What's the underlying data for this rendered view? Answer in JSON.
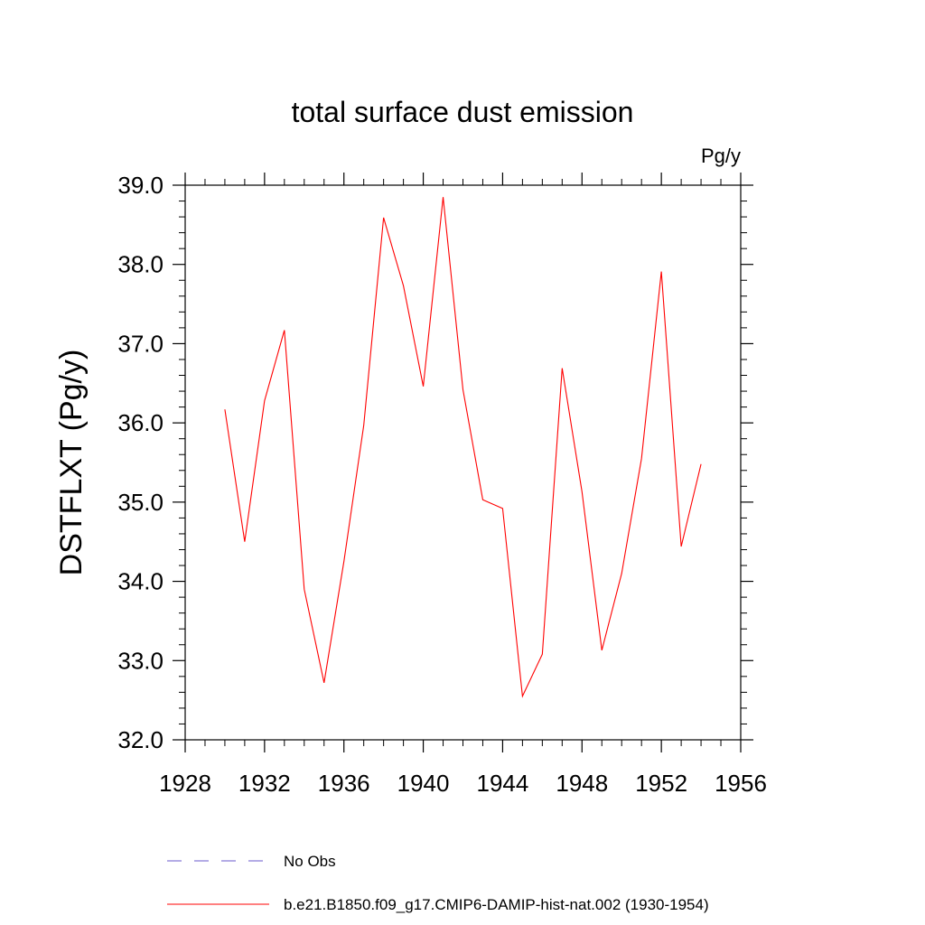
{
  "chart_data": {
    "type": "line",
    "title": "total surface dust emission",
    "units_label": "Pg/y",
    "ylabel": "DSTFLXT  (Pg/y)",
    "xlabel": "",
    "xlim": [
      1928,
      1956
    ],
    "ylim": [
      32.0,
      39.0
    ],
    "x_ticks": [
      1928,
      1932,
      1936,
      1940,
      1944,
      1948,
      1952,
      1956
    ],
    "y_ticks": [
      "32.0",
      "33.0",
      "34.0",
      "35.0",
      "36.0",
      "37.0",
      "38.0",
      "39.0"
    ],
    "legend_position": "bottom",
    "series": [
      {
        "name": "No Obs",
        "color": "#6a5acd",
        "style": "dashed",
        "x": [],
        "values": []
      },
      {
        "name": "b.e21.B1850.f09_g17.CMIP6-DAMIP-hist-nat.002 (1930-1954)",
        "color": "#ff0000",
        "style": "solid",
        "x": [
          1930,
          1931,
          1932,
          1933,
          1934,
          1935,
          1936,
          1937,
          1938,
          1939,
          1940,
          1941,
          1942,
          1943,
          1944,
          1945,
          1946,
          1947,
          1948,
          1949,
          1950,
          1951,
          1952,
          1953,
          1954
        ],
        "values": [
          36.17,
          34.5,
          36.28,
          37.17,
          33.9,
          32.72,
          34.25,
          35.97,
          38.59,
          37.73,
          36.46,
          38.85,
          36.42,
          35.03,
          34.92,
          32.55,
          33.08,
          36.69,
          35.13,
          33.13,
          34.1,
          35.55,
          37.91,
          34.44,
          35.48
        ]
      }
    ]
  }
}
